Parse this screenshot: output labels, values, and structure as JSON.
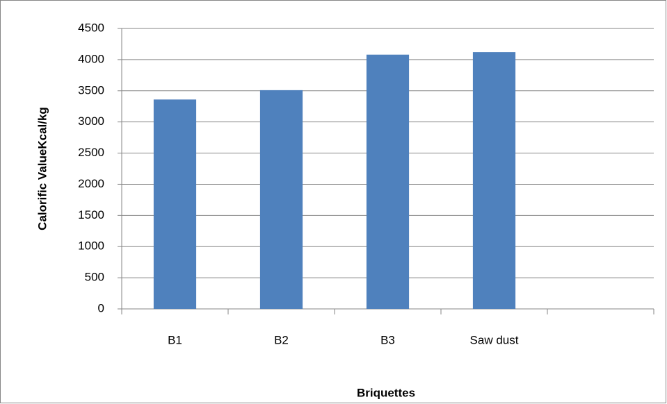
{
  "chart_data": {
    "type": "bar",
    "x_label": "Briquettes",
    "y_label": "Calorific ValueKcal/kg",
    "categories": [
      "B1",
      "B2",
      "B3",
      "Saw dust",
      null
    ],
    "values": [
      3360,
      3510,
      4080,
      4120,
      null
    ],
    "color": "#4f81bd",
    "ylim": [
      0,
      4500
    ],
    "yticks": [
      0,
      500,
      1000,
      1500,
      2000,
      2500,
      3000,
      3500,
      4000,
      4500
    ],
    "grid": true
  }
}
